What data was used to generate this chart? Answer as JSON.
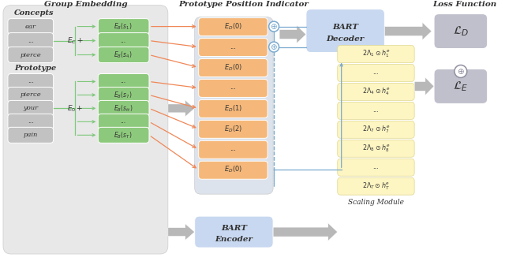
{
  "section1_title": "Group Embedding",
  "section2_title": "Prototype Position Indicator",
  "section3_title": "Loss Function",
  "panel_bg": "#e8e8e8",
  "ppi_bg": "#dde3ec",
  "green_box": "#8dc97c",
  "orange_box": "#f5b87a",
  "blue_box": "#c8d8f0",
  "yellow_box": "#fdf5c2",
  "gray_box": "#c2c2c2",
  "loss_box": "#c0c0cc",
  "arrow_gray": "#b8b8b8",
  "arrow_orange": "#f08858",
  "arrow_blue": "#7aaacf",
  "arrow_green": "#7dc87a",
  "text_color": "#333333",
  "concepts_words": [
    "ear",
    "...",
    "pierce"
  ],
  "proto_words": [
    "...",
    "pierce",
    "your",
    "...",
    "pain"
  ],
  "green_c_labels": [
    "$E_B(s_1)$",
    "...",
    "$E_B(s_4)$"
  ],
  "green_p_labels": [
    "...",
    "$E_B(s_7)$",
    "$E_B(s_{tt})$",
    "...",
    "$E_B(s_T)$"
  ],
  "orange_labels": [
    "$E_D(0)$",
    "...",
    "$E_D(0)$",
    "...",
    "$E_D(1)$",
    "$E_D(2)$",
    "...",
    "$E_D(0)$"
  ],
  "yellow_labels": [
    "$2\\Lambda_1 \\odot h_1^e$",
    "...",
    "$2\\Lambda_4 \\odot h_4^e$",
    "...",
    "$2\\Lambda_7 \\odot h_7^e$",
    "$2\\Lambda_8 \\odot h_8^e$",
    "...",
    "$2\\Lambda_T \\odot h_T^e$"
  ]
}
